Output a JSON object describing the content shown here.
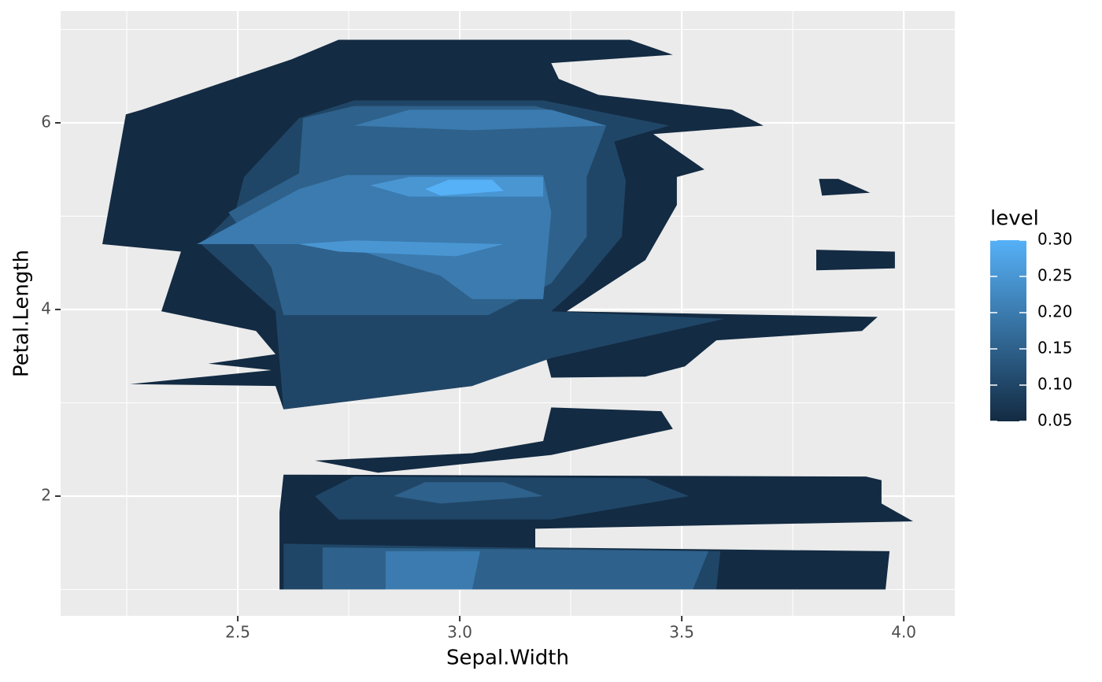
{
  "chart_data": {
    "type": "filled-contour",
    "x_label": "Sepal.Width",
    "y_label": "Petal.Length",
    "xlim": [
      2.101,
      4.115
    ],
    "ylim": [
      0.717,
      7.198
    ],
    "xticks": [
      2.5,
      {
        "value": 3.0,
        "label": "3.0"
      },
      3.5,
      {
        "value": 4.0,
        "label": "4.0"
      }
    ],
    "yticks": [
      2,
      4,
      6
    ],
    "grid": true,
    "legend": {
      "title": "level",
      "low_color": "#132B43",
      "high_color": "#56B1F7",
      "ticks": [
        0.05,
        {
          "value": 0.1,
          "label": "0.10"
        },
        0.15,
        {
          "value": 0.2,
          "label": "0.20"
        },
        0.25,
        {
          "value": 0.3,
          "label": "0.30"
        }
      ]
    },
    "contours": [
      {
        "level": 0.05,
        "polygons": [
          {
            "x": [
              2.195,
              2.248,
              2.284,
              2.621,
              2.727,
              3.383,
              3.48,
              3.206,
              3.223,
              3.312,
              3.613,
              3.684,
              3.436,
              3.551,
              3.489,
              3.489,
              3.418,
              3.241,
              3.941,
              3.906,
              3.578,
              3.507,
              3.418,
              3.206,
              3.188,
              3.028,
              2.603,
              2.585,
              2.257,
              2.576,
              2.434,
              2.585,
              2.541,
              2.328,
              2.372
            ],
            "y": [
              4.7,
              6.09,
              6.14,
              6.68,
              6.89,
              6.89,
              6.73,
              6.64,
              6.47,
              6.3,
              6.14,
              5.97,
              5.88,
              5.5,
              5.42,
              5.12,
              4.53,
              3.98,
              3.92,
              3.77,
              3.67,
              3.39,
              3.28,
              3.27,
              3.6,
              3.18,
              2.93,
              3.18,
              3.2,
              3.35,
              3.42,
              3.52,
              3.77,
              3.98,
              4.62
            ]
          },
          {
            "x": [
              2.594,
              3.959,
              3.968,
              3.17,
              3.17,
              4.021,
              3.95,
              3.95,
              3.915,
              2.603,
              2.594
            ],
            "y": [
              1.0,
              1.0,
              1.41,
              1.45,
              1.65,
              1.73,
              1.92,
              2.17,
              2.21,
              2.23,
              1.83
            ]
          },
          {
            "x": [
              2.674,
              3.028,
              3.188,
              3.206,
              3.454,
              3.48,
              3.206,
              2.816
            ],
            "y": [
              2.38,
              2.46,
              2.59,
              2.95,
              2.91,
              2.72,
              2.44,
              2.25
            ]
          },
          {
            "x": [
              3.809,
              3.853,
              3.924,
              3.816
            ],
            "y": [
              5.4,
              5.4,
              5.25,
              5.22
            ]
          },
          {
            "x": [
              3.803,
              3.98,
              3.98,
              3.803
            ],
            "y": [
              4.64,
              4.62,
              4.44,
              4.42
            ]
          }
        ]
      },
      {
        "level": 0.1,
        "polygons": [
          {
            "x": [
              2.417,
              2.496,
              2.514,
              2.638,
              2.762,
              3.188,
              3.472,
              3.348,
              3.374,
              3.365,
              3.277,
              3.206,
              3.596,
              3.206,
              3.028,
              2.603,
              2.585
            ],
            "y": [
              4.7,
              5.08,
              5.42,
              6.05,
              6.24,
              6.24,
              5.97,
              5.8,
              5.38,
              4.78,
              4.28,
              3.98,
              3.9,
              3.48,
              3.18,
              2.93,
              3.98
            ]
          },
          {
            "x": [
              2.603,
              3.578,
              3.587,
              2.603
            ],
            "y": [
              1.0,
              1.0,
              1.41,
              1.49
            ]
          },
          {
            "x": [
              2.674,
              2.762,
              3.418,
              3.516,
              3.206,
              2.727
            ],
            "y": [
              2.0,
              2.21,
              2.19,
              2.0,
              1.75,
              1.75
            ]
          }
        ]
      },
      {
        "level": 0.15,
        "polygons": [
          {
            "x": [
              2.647,
              2.762,
              3.17,
              3.33,
              3.286,
              3.286,
              3.206,
              3.064,
              2.603,
              2.576,
              2.479,
              2.638
            ],
            "y": [
              6.05,
              6.18,
              6.18,
              5.97,
              5.42,
              4.78,
              4.28,
              3.94,
              3.94,
              4.45,
              5.04,
              5.46
            ]
          },
          {
            "x": [
              2.691,
              3.525,
              3.56,
              2.691
            ],
            "y": [
              1.0,
              1.0,
              1.41,
              1.45
            ]
          },
          {
            "x": [
              2.851,
              2.922,
              3.099,
              3.188,
              2.957
            ],
            "y": [
              2.0,
              2.15,
              2.15,
              2.0,
              1.92
            ]
          }
        ]
      },
      {
        "level": 0.2,
        "polygons": [
          {
            "x": [
              2.762,
              2.886,
              3.206,
              3.33,
              3.028
            ],
            "y": [
              5.97,
              6.14,
              6.14,
              5.97,
              5.92
            ]
          },
          {
            "x": [
              2.638,
              2.744,
              3.188,
              3.206,
              3.188,
              3.028,
              2.957,
              2.78,
              2.674,
              2.408
            ],
            "y": [
              5.29,
              5.44,
              5.44,
              5.04,
              4.11,
              4.11,
              4.36,
              4.62,
              4.7,
              4.7
            ]
          },
          {
            "x": [
              2.833,
              3.028,
              3.046,
              2.833
            ],
            "y": [
              1.0,
              1.0,
              1.41,
              1.41
            ]
          }
        ]
      },
      {
        "level": 0.25,
        "polygons": [
          {
            "x": [
              2.798,
              2.886,
              3.188,
              3.188,
              2.886
            ],
            "y": [
              5.33,
              5.42,
              5.42,
              5.21,
              5.21
            ]
          },
          {
            "x": [
              2.638,
              2.762,
              3.099,
              2.993,
              2.727
            ],
            "y": [
              4.7,
              4.74,
              4.7,
              4.57,
              4.62
            ]
          }
        ]
      },
      {
        "level": 0.3,
        "polygons": [
          {
            "x": [
              2.922,
              2.975,
              3.073,
              3.099,
              2.957
            ],
            "y": [
              5.29,
              5.39,
              5.39,
              5.27,
              5.22
            ]
          }
        ]
      }
    ]
  }
}
